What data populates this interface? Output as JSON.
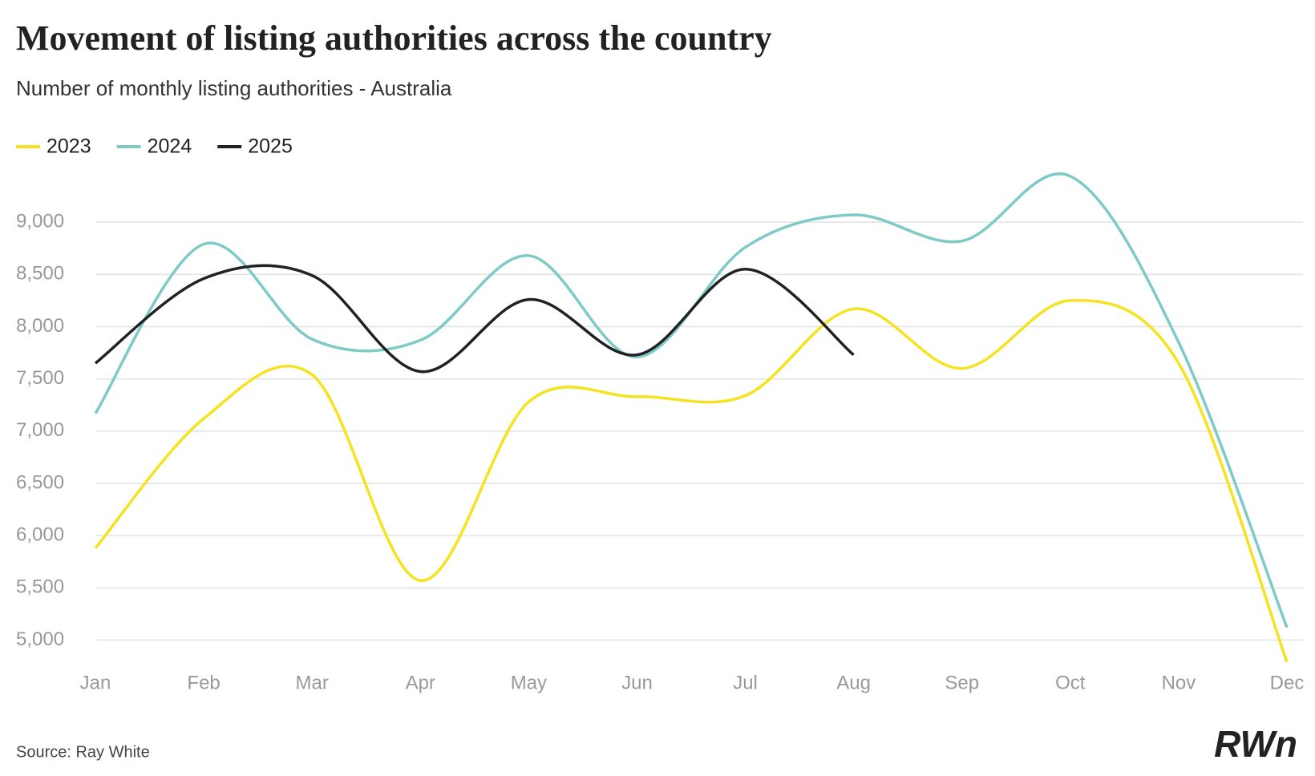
{
  "chart_data": {
    "type": "line",
    "title": "Movement of listing authorities across the country",
    "subtitle": "Number of monthly listing authorities - Australia",
    "source": "Source: Ray White",
    "logo": "RWn",
    "categories": [
      "Jan",
      "Feb",
      "Mar",
      "Apr",
      "May",
      "Jun",
      "Jul",
      "Aug",
      "Sep",
      "Oct",
      "Nov",
      "Dec"
    ],
    "series": [
      {
        "name": "2023",
        "color": "#f5e31f",
        "values": [
          5880,
          7120,
          7540,
          5570,
          7280,
          7330,
          7340,
          8170,
          7600,
          8250,
          7650,
          4790
        ]
      },
      {
        "name": "2024",
        "color": "#7dcac7",
        "values": [
          7170,
          8790,
          7880,
          7870,
          8680,
          7710,
          8760,
          9070,
          8820,
          9440,
          7850,
          5120
        ]
      },
      {
        "name": "2025",
        "color": "#222222",
        "values": [
          7650,
          8460,
          8490,
          7570,
          8260,
          7730,
          8550,
          7730,
          null,
          null,
          null,
          null
        ]
      }
    ],
    "ylim": [
      4750,
      9500
    ],
    "yticks": [
      {
        "value": 5000,
        "label": "5,000"
      },
      {
        "value": 5500,
        "label": "5,500"
      },
      {
        "value": 6000,
        "label": "6,000"
      },
      {
        "value": 6500,
        "label": "6,500"
      },
      {
        "value": 7000,
        "label": "7,000"
      },
      {
        "value": 7500,
        "label": "7,500"
      },
      {
        "value": 8000,
        "label": "8,000"
      },
      {
        "value": 8500,
        "label": "8,500"
      },
      {
        "value": 9000,
        "label": "9,000"
      }
    ],
    "grid": true,
    "legend": "top-left"
  }
}
